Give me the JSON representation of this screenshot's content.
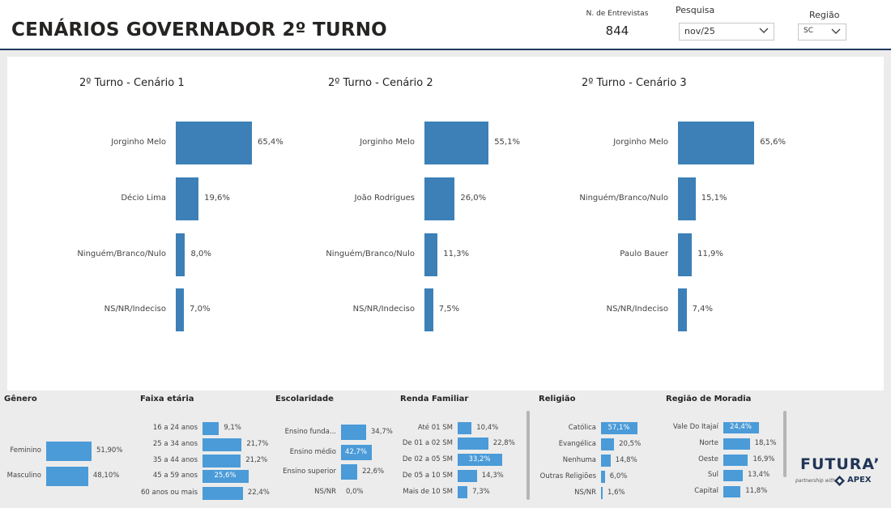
{
  "header": {
    "title": "CENÁRIOS GOVERNADOR 2º TURNO",
    "kpi_label": "N. de Entrevistas",
    "kpi_value": "844",
    "pesquisa_label": "Pesquisa",
    "pesquisa_value": "nov/25",
    "regiao_label": "Região",
    "regiao_value": "SC"
  },
  "chart_data": [
    {
      "type": "bar",
      "orientation": "horizontal",
      "title": "2º Turno - Cenário 1",
      "categories": [
        "Jorginho Melo",
        "Décio Lima",
        "Ninguém/Branco/Nulo",
        "NS/NR/Indeciso"
      ],
      "values": [
        65.4,
        19.6,
        8.0,
        7.0
      ],
      "labels": [
        "65,4%",
        "19,6%",
        "8,0%",
        "7,0%"
      ],
      "color": "#3c80b7"
    },
    {
      "type": "bar",
      "orientation": "horizontal",
      "title": "2º Turno - Cenário 2",
      "categories": [
        "Jorginho Melo",
        "João Rodrigues",
        "Ninguém/Branco/Nulo",
        "NS/NR/Indeciso"
      ],
      "values": [
        55.1,
        26.0,
        11.3,
        7.5
      ],
      "labels": [
        "55,1%",
        "26,0%",
        "11,3%",
        "7,5%"
      ],
      "color": "#3c80b7"
    },
    {
      "type": "bar",
      "orientation": "horizontal",
      "title": "2º Turno - Cenário 3",
      "categories": [
        "Jorginho Melo",
        "Ninguém/Branco/Nulo",
        "Paulo Bauer",
        "NS/NR/Indeciso"
      ],
      "values": [
        65.6,
        15.1,
        11.9,
        7.4
      ],
      "labels": [
        "65,6%",
        "15,1%",
        "11,9%",
        "7,4%"
      ],
      "color": "#3c80b7"
    },
    {
      "type": "bar",
      "orientation": "horizontal",
      "title": "Gênero",
      "categories": [
        "Feminino",
        "Masculino"
      ],
      "values": [
        51.9,
        48.1
      ],
      "labels": [
        "51,90%",
        "48,10%"
      ],
      "color": "#4a9bd8"
    },
    {
      "type": "bar",
      "orientation": "horizontal",
      "title": "Faixa etária",
      "categories": [
        "16 a 24 anos",
        "25 a 34 anos",
        "35 a 44 anos",
        "45 a 59 anos",
        "60 anos ou mais"
      ],
      "values": [
        9.1,
        21.7,
        21.2,
        25.6,
        22.4
      ],
      "labels": [
        "9,1%",
        "21,7%",
        "21,2%",
        "25,6%",
        "22,4%"
      ],
      "color": "#4a9bd8"
    },
    {
      "type": "bar",
      "orientation": "horizontal",
      "title": "Escolaridade",
      "categories": [
        "Ensino funda...",
        "Ensino médio",
        "Ensino superior",
        "NS/NR"
      ],
      "values": [
        34.7,
        42.7,
        22.6,
        0.0
      ],
      "labels": [
        "34,7%",
        "42,7%",
        "22,6%",
        "0,0%"
      ],
      "color": "#4a9bd8"
    },
    {
      "type": "bar",
      "orientation": "horizontal",
      "title": "Renda Familiar",
      "categories": [
        "Até 01 SM",
        "De 01 a 02 SM",
        "De 02 a 05 SM",
        "De 05 a 10 SM",
        "Mais de 10 SM"
      ],
      "values": [
        10.4,
        22.8,
        33.2,
        14.3,
        7.3
      ],
      "labels": [
        "10,4%",
        "22,8%",
        "33,2%",
        "14,3%",
        "7,3%"
      ],
      "color": "#4a9bd8"
    },
    {
      "type": "bar",
      "orientation": "horizontal",
      "title": "Religião",
      "categories": [
        "Católica",
        "Evangélica",
        "Nenhuma",
        "Outras Religiões",
        "NS/NR"
      ],
      "values": [
        57.1,
        20.5,
        14.8,
        6.0,
        1.6
      ],
      "labels": [
        "57,1%",
        "20,5%",
        "14,8%",
        "6,0%",
        "1,6%"
      ],
      "color": "#4a9bd8"
    },
    {
      "type": "bar",
      "orientation": "horizontal",
      "title": "Região de Moradia",
      "categories": [
        "Vale Do Itajaí",
        "Norte",
        "Oeste",
        "Sul",
        "Capital"
      ],
      "values": [
        24.4,
        18.1,
        16.9,
        13.4,
        11.8
      ],
      "labels": [
        "24,4%",
        "18,1%",
        "16,9%",
        "13,4%",
        "11,8%"
      ],
      "color": "#4a9bd8"
    }
  ],
  "logo": {
    "brand": "FUTURA’",
    "partner_text": "partnership with",
    "partner_brand": "APEX"
  },
  "colors": {
    "navy": "#223a5e",
    "bar_main": "#3c80b7",
    "bar_small": "#4a9bd8"
  }
}
